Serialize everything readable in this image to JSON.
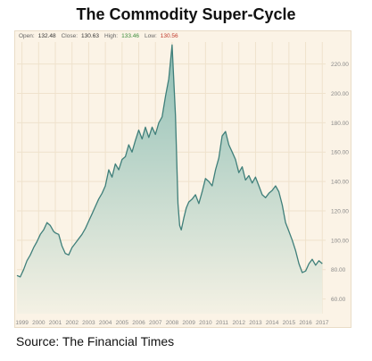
{
  "title": "The Commodity Super-Cycle",
  "source": "Source: The Financial Times",
  "ohlc": {
    "open_label": "Open:",
    "open": "132.48",
    "close_label": "Close:",
    "close": "130.63",
    "high_label": "High:",
    "high": "133.46",
    "low_label": "Low:",
    "low": "130.56"
  },
  "colors": {
    "line": "#3f7f7a",
    "fill_top": "#8fbfb5",
    "fill_bottom": "#f4f1e4",
    "background": "#fbf3e6",
    "grid": "#efe2cc",
    "tick_text": "#888888",
    "high": "#3a8c3a",
    "low": "#c0392b"
  },
  "chart_data": {
    "type": "area",
    "title": "The Commodity Super-Cycle",
    "xlabel": "",
    "ylabel": "",
    "xlim": [
      1998.7,
      2017.2
    ],
    "ylim": [
      50,
      235
    ],
    "grid": true,
    "y_ticks": [
      "60.00",
      "80.00",
      "100.00",
      "120.00",
      "140.00",
      "160.00",
      "180.00",
      "200.00",
      "220.00"
    ],
    "y_tick_values": [
      60,
      80,
      100,
      120,
      140,
      160,
      180,
      200,
      220
    ],
    "x_ticks": [
      "1999",
      "2000",
      "2001",
      "2002",
      "2003",
      "2004",
      "2005",
      "2006",
      "2007",
      "2008",
      "2009",
      "2010",
      "2011",
      "2012",
      "2013",
      "2014",
      "2015",
      "2016",
      "2017"
    ],
    "x_tick_values": [
      1999,
      2000,
      2001,
      2002,
      2003,
      2004,
      2005,
      2006,
      2007,
      2008,
      2009,
      2010,
      2011,
      2012,
      2013,
      2014,
      2015,
      2016,
      2017
    ],
    "series": [
      {
        "x": [
          1998.7,
          1998.9,
          1999.1,
          1999.3,
          1999.5,
          1999.7,
          1999.9,
          2000.1,
          2000.3,
          2000.5,
          2000.7,
          2000.9,
          2001.0,
          2001.2,
          2001.4,
          2001.6,
          2001.8,
          2002.0,
          2002.2,
          2002.4,
          2002.6,
          2002.8,
          2003.0,
          2003.2,
          2003.4,
          2003.6,
          2003.8,
          2004.0,
          2004.2,
          2004.4,
          2004.6,
          2004.8,
          2005.0,
          2005.2,
          2005.4,
          2005.6,
          2005.8,
          2006.0,
          2006.2,
          2006.4,
          2006.6,
          2006.8,
          2007.0,
          2007.2,
          2007.4,
          2007.6,
          2007.8,
          2008.0,
          2008.2,
          2008.35,
          2008.45,
          2008.55,
          2008.7,
          2008.85,
          2009.0,
          2009.2,
          2009.4,
          2009.6,
          2009.8,
          2010.0,
          2010.2,
          2010.4,
          2010.6,
          2010.8,
          2011.0,
          2011.2,
          2011.4,
          2011.6,
          2011.8,
          2012.0,
          2012.2,
          2012.4,
          2012.6,
          2012.8,
          2013.0,
          2013.2,
          2013.4,
          2013.6,
          2013.8,
          2014.0,
          2014.2,
          2014.4,
          2014.6,
          2014.8,
          2015.0,
          2015.2,
          2015.4,
          2015.6,
          2015.8,
          2016.0,
          2016.2,
          2016.4,
          2016.6,
          2016.8,
          2017.0
        ],
        "values": [
          76,
          75,
          80,
          86,
          90,
          95,
          99,
          104,
          107,
          112,
          110,
          106,
          105,
          104,
          96,
          91,
          90,
          95,
          98,
          101,
          104,
          108,
          113,
          118,
          123,
          128,
          132,
          137,
          148,
          143,
          152,
          148,
          155,
          157,
          165,
          160,
          168,
          175,
          169,
          177,
          170,
          177,
          172,
          180,
          184,
          198,
          210,
          233,
          185,
          125,
          110,
          107,
          115,
          122,
          126,
          128,
          131,
          125,
          133,
          142,
          140,
          137,
          148,
          156,
          171,
          174,
          165,
          160,
          155,
          146,
          150,
          141,
          144,
          139,
          143,
          137,
          131,
          129,
          132,
          134,
          137,
          133,
          124,
          112,
          106,
          100,
          93,
          84,
          78,
          79,
          84,
          87,
          83,
          86,
          84
        ]
      }
    ]
  }
}
